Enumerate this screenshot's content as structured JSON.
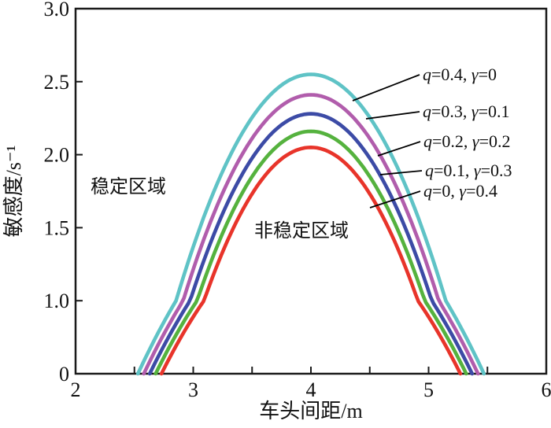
{
  "figure": {
    "background": "#ffffff",
    "frame_color": "#1a1a1a",
    "region_labels": {
      "stable": "稳定区域",
      "unstable": "非稳定区域"
    }
  },
  "chart_data": {
    "type": "line",
    "title": "",
    "xlabel": "车头间距/m",
    "ylabel": "敏感度/s⁻¹",
    "xlim": [
      2,
      6
    ],
    "ylim": [
      0,
      3.0
    ],
    "grid": false,
    "legend_position": "inline leader-line labels, upper right inside frame",
    "x_tick_values": [
      2,
      3,
      4,
      5,
      6
    ],
    "x_tick_labels": [
      "2",
      "3",
      "4",
      "5",
      "6"
    ],
    "x_minor_tick_step": 0.5,
    "y_tick_values": [
      3.0,
      2.5,
      2.0,
      1.5,
      1.0,
      0
    ],
    "y_tick_labels": [
      "3.0",
      "2.5",
      "2.0",
      "1.5",
      "1.0",
      "0"
    ],
    "y_axis_note": "six tick labels evenly spaced; bottom 1.0-to-0 interval compressed as in source figure",
    "curve_model": "y = peak * (1 - ((x - center)/half_width)^2), clipped at y = 0",
    "series": [
      {
        "label": "q=0.4, γ=0",
        "q": 0.4,
        "gamma": 0,
        "color": "#5fc3c6",
        "peak": 2.55,
        "center": 4.0,
        "half_width": 1.47,
        "points_x": [
          2.53,
          2.71,
          2.9,
          3.08,
          3.27,
          3.45,
          3.63,
          3.82,
          4.0,
          4.18,
          4.37,
          4.55,
          4.74,
          4.92,
          5.1,
          5.29,
          5.47
        ],
        "points_y": [
          0,
          0.6,
          1.12,
          1.55,
          1.91,
          2.19,
          2.39,
          2.51,
          2.55,
          2.51,
          2.39,
          2.19,
          1.91,
          1.55,
          1.12,
          0.6,
          0
        ]
      },
      {
        "label": "q=0.3, γ=0.1",
        "q": 0.3,
        "gamma": 0.1,
        "color": "#b15dac",
        "peak": 2.41,
        "center": 4.0,
        "half_width": 1.42,
        "points_x": [
          2.58,
          2.76,
          2.94,
          3.11,
          3.29,
          3.47,
          3.65,
          3.82,
          4.0,
          4.18,
          4.36,
          4.53,
          4.71,
          4.89,
          5.07,
          5.24,
          5.42
        ],
        "points_y": [
          0,
          0.56,
          1.05,
          1.47,
          1.81,
          2.07,
          2.26,
          2.37,
          2.41,
          2.37,
          2.26,
          2.07,
          1.81,
          1.47,
          1.05,
          0.56,
          0
        ]
      },
      {
        "label": "q=0.2, γ=0.2",
        "q": 0.2,
        "gamma": 0.2,
        "color": "#3c4ba6",
        "peak": 2.28,
        "center": 4.0,
        "half_width": 1.37,
        "points_x": [
          2.63,
          2.8,
          2.97,
          3.14,
          3.32,
          3.49,
          3.66,
          3.83,
          4.0,
          4.17,
          4.34,
          4.51,
          4.69,
          4.86,
          5.03,
          5.2,
          5.37
        ],
        "points_y": [
          0,
          0.53,
          1.0,
          1.39,
          1.71,
          1.96,
          2.14,
          2.24,
          2.28,
          2.24,
          2.14,
          1.96,
          1.71,
          1.39,
          1.0,
          0.53,
          0
        ]
      },
      {
        "label": "q=0.1, γ=0.3",
        "q": 0.1,
        "gamma": 0.3,
        "color": "#55b23e",
        "peak": 2.16,
        "center": 4.0,
        "half_width": 1.32,
        "points_x": [
          2.68,
          2.85,
          3.01,
          3.18,
          3.34,
          3.51,
          3.67,
          3.84,
          4.0,
          4.17,
          4.33,
          4.5,
          4.66,
          4.83,
          4.99,
          5.16,
          5.32
        ],
        "points_y": [
          0,
          0.51,
          0.95,
          1.32,
          1.62,
          1.86,
          2.03,
          2.13,
          2.16,
          2.13,
          2.03,
          1.86,
          1.62,
          1.32,
          0.95,
          0.51,
          0
        ]
      },
      {
        "label": "q=0, γ=0.4",
        "q": 0,
        "gamma": 0.4,
        "color": "#e8342a",
        "peak": 2.05,
        "center": 4.0,
        "half_width": 1.27,
        "points_x": [
          2.73,
          2.89,
          3.05,
          3.21,
          3.37,
          3.52,
          3.68,
          3.84,
          4.0,
          4.16,
          4.32,
          4.48,
          4.64,
          4.79,
          4.95,
          5.11,
          5.27
        ],
        "points_y": [
          0,
          0.48,
          0.9,
          1.25,
          1.54,
          1.76,
          1.92,
          2.02,
          2.05,
          2.02,
          1.92,
          1.76,
          1.54,
          1.25,
          0.9,
          0.48,
          0
        ]
      }
    ]
  }
}
